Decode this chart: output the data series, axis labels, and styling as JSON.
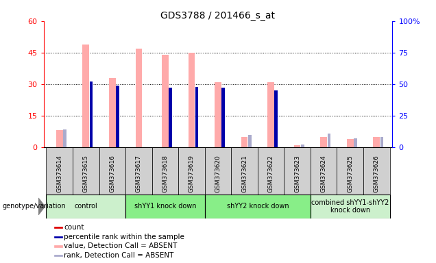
{
  "title": "GDS3788 / 201466_s_at",
  "samples": [
    "GSM373614",
    "GSM373615",
    "GSM373616",
    "GSM373617",
    "GSM373618",
    "GSM373619",
    "GSM373620",
    "GSM373621",
    "GSM373622",
    "GSM373623",
    "GSM373624",
    "GSM373625",
    "GSM373626"
  ],
  "absent_count_values": [
    8,
    49,
    33,
    47,
    44,
    45,
    31,
    5,
    31,
    1,
    5,
    4,
    5
  ],
  "absent_rank_values": [
    14,
    0,
    0,
    0,
    0,
    0,
    0,
    10,
    0,
    2,
    11,
    7,
    8
  ],
  "count_values": [
    0,
    0,
    0,
    0,
    0,
    0,
    0,
    0,
    0,
    0,
    0,
    0,
    0
  ],
  "rank_values": [
    0,
    52,
    49,
    0,
    47,
    48,
    47,
    0,
    45,
    0,
    0,
    0,
    0
  ],
  "ylim_left": [
    0,
    60
  ],
  "ylim_right": [
    0,
    100
  ],
  "yticks_left": [
    0,
    15,
    30,
    45,
    60
  ],
  "yticks_right": [
    0,
    25,
    50,
    75,
    100
  ],
  "ytick_labels_left": [
    "0",
    "15",
    "30",
    "45",
    "60"
  ],
  "ytick_labels_right": [
    "0",
    "25",
    "50",
    "75",
    "100%"
  ],
  "groups": [
    {
      "label": "control",
      "start": 0,
      "end": 3,
      "color": "#ccf0cc"
    },
    {
      "label": "shYY1 knock down",
      "start": 3,
      "end": 6,
      "color": "#88ee88"
    },
    {
      "label": "shYY2 knock down",
      "start": 6,
      "end": 10,
      "color": "#88ee88"
    },
    {
      "label": "combined shYY1-shYY2\nknock down",
      "start": 10,
      "end": 13,
      "color": "#ccf0cc"
    }
  ],
  "absent_count_color": "#ffaaaa",
  "absent_rank_color": "#aaaacc",
  "count_color": "#dd0000",
  "rank_color": "#0000aa",
  "bg_color": "#d0d0d0",
  "legend_items": [
    {
      "label": "count",
      "color": "#dd0000"
    },
    {
      "label": "percentile rank within the sample",
      "color": "#0000aa"
    },
    {
      "label": "value, Detection Call = ABSENT",
      "color": "#ffaaaa"
    },
    {
      "label": "rank, Detection Call = ABSENT",
      "color": "#aaaacc"
    }
  ]
}
